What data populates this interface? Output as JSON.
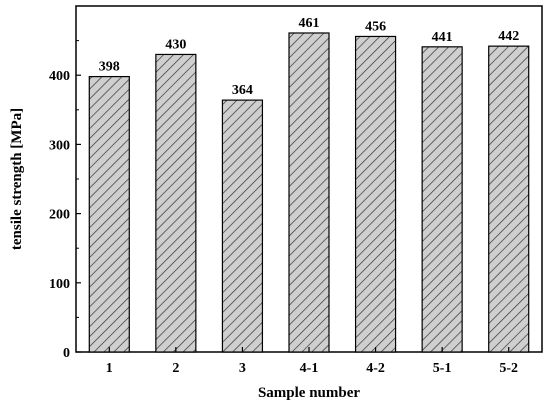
{
  "chart_data": {
    "type": "bar",
    "categories": [
      "1",
      "2",
      "3",
      "4-1",
      "4-2",
      "5-1",
      "5-2"
    ],
    "values": [
      398,
      430,
      364,
      461,
      456,
      441,
      442
    ],
    "data_labels": [
      "398",
      "430",
      "364",
      "461",
      "456",
      "441",
      "442"
    ],
    "title": "",
    "xlabel": "Sample number",
    "ylabel": "tensile strength  [MPa]",
    "ylim": [
      0,
      500
    ],
    "yticks": [
      0,
      100,
      200,
      300,
      400
    ],
    "grid": false,
    "bar_fill": "hatched-diagonal",
    "colors": {
      "bar_fill": "#cfcfcf",
      "hatch": "#333333",
      "stroke": "#000000"
    }
  }
}
